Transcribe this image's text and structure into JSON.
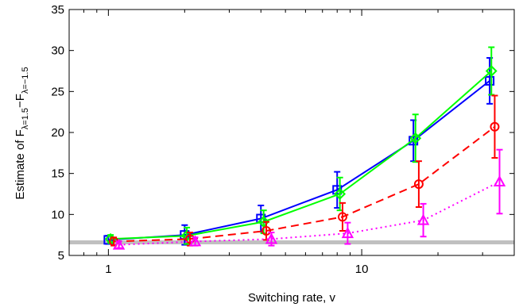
{
  "chart_data": {
    "type": "line",
    "title": "",
    "xlabel": "Switching rate, v",
    "ylabel_main": "Estimate of F",
    "ylabel_sub1": "λ=1.5",
    "ylabel_mid": "−F",
    "ylabel_sub2": "λ=−1.5",
    "xscale": "log",
    "xlim": [
      0.7,
      40
    ],
    "ylim": [
      5,
      35
    ],
    "xticks": [
      1,
      10
    ],
    "xtick_labels": [
      "1",
      "10"
    ],
    "yticks": [
      5,
      10,
      15,
      20,
      25,
      30,
      35
    ],
    "ytick_labels": [
      "5",
      "10",
      "15",
      "20",
      "25",
      "30",
      "35"
    ],
    "grid": false,
    "reference_line": {
      "y": 6.6,
      "color": "#c0c0c0"
    },
    "series": [
      {
        "color": "#0000ff",
        "line": "solid",
        "marker": "square",
        "x": [
          1.0,
          2.0,
          4.0,
          8.0,
          16.0,
          32.0
        ],
        "y": [
          6.9,
          7.5,
          9.5,
          13.0,
          19.0,
          26.3
        ],
        "err": [
          0.5,
          1.2,
          1.6,
          2.2,
          2.5,
          2.8
        ]
      },
      {
        "color": "#00ff00",
        "line": "solid",
        "marker": "diamond",
        "x": [
          1.02,
          2.04,
          4.1,
          8.2,
          16.3,
          32.5
        ],
        "y": [
          7.0,
          7.4,
          9.1,
          12.5,
          19.3,
          27.5
        ],
        "err": [
          0.5,
          1.0,
          1.4,
          2.0,
          2.9,
          2.9
        ]
      },
      {
        "color": "#ff0000",
        "line": "dashed",
        "marker": "circle",
        "x": [
          1.05,
          2.1,
          4.2,
          8.4,
          16.8,
          33.5
        ],
        "y": [
          6.7,
          7.0,
          8.0,
          9.7,
          13.7,
          20.7
        ],
        "err": [
          0.5,
          0.8,
          1.1,
          1.7,
          2.8,
          3.8
        ]
      },
      {
        "color": "#ff00ff",
        "line": "dotted",
        "marker": "triangle",
        "x": [
          1.1,
          2.2,
          4.4,
          8.8,
          17.5,
          35.0
        ],
        "y": [
          6.3,
          6.7,
          7.0,
          7.7,
          9.3,
          14.0
        ],
        "err": [
          0.4,
          0.5,
          0.8,
          1.3,
          2.0,
          3.9
        ]
      }
    ]
  }
}
